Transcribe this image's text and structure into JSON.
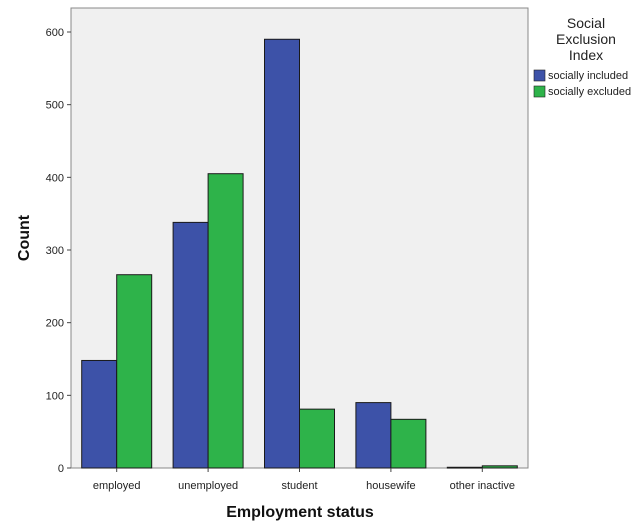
{
  "chart_data": {
    "type": "bar",
    "categories": [
      "employed",
      "unemployed",
      "student",
      "housewife",
      "other inactive"
    ],
    "series": [
      {
        "name": "socially included",
        "values": [
          148,
          338,
          590,
          90,
          1
        ],
        "color": "#3d52a8"
      },
      {
        "name": "socially excluded",
        "values": [
          266,
          405,
          81,
          67,
          3
        ],
        "color": "#2eb34a"
      }
    ],
    "xlabel": "Employment status",
    "ylabel": "Count",
    "ylim": [
      0,
      600
    ],
    "yticks": [
      0,
      100,
      200,
      300,
      400,
      500,
      600
    ],
    "legend": {
      "title_lines": [
        "Social",
        "Exclusion",
        "Index"
      ],
      "position": "right"
    },
    "plot_background": "#f0f0f0",
    "grid": false
  }
}
